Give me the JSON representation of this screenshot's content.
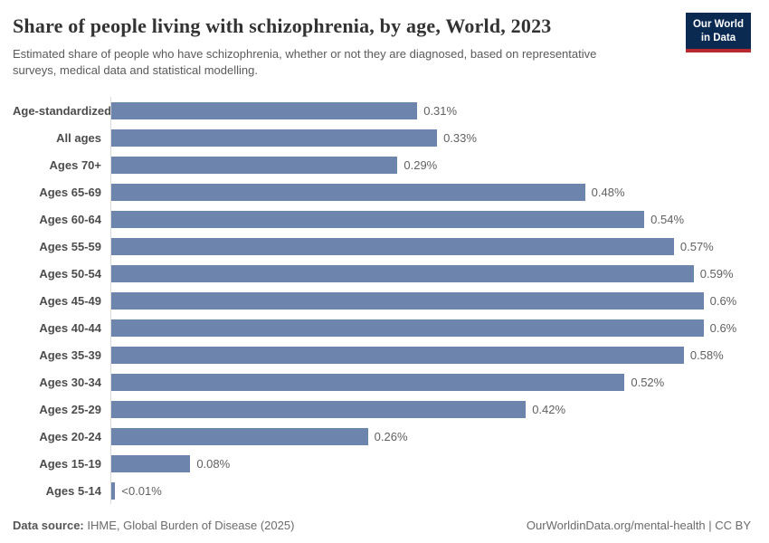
{
  "header": {
    "title": "Share of people living with schizophrenia, by age, World, 2023",
    "subtitle": "Estimated share of people who have schizophrenia, whether or not they are diagnosed, based on representative surveys, medical data and statistical modelling.",
    "logo_line1": "Our World",
    "logo_line2": "in Data"
  },
  "chart_data": {
    "type": "bar",
    "orientation": "horizontal",
    "title": "Share of people living with schizophrenia, by age, World, 2023",
    "categories": [
      "Age-standardized",
      "All ages",
      "Ages 70+",
      "Ages 65-69",
      "Ages 60-64",
      "Ages 55-59",
      "Ages 50-54",
      "Ages 45-49",
      "Ages 40-44",
      "Ages 35-39",
      "Ages 30-34",
      "Ages 25-29",
      "Ages 20-24",
      "Ages 15-19",
      "Ages 5-14"
    ],
    "values": [
      0.31,
      0.33,
      0.29,
      0.48,
      0.54,
      0.57,
      0.59,
      0.6,
      0.6,
      0.58,
      0.52,
      0.42,
      0.26,
      0.08,
      0.004
    ],
    "value_labels": [
      "0.31%",
      "0.33%",
      "0.29%",
      "0.48%",
      "0.54%",
      "0.57%",
      "0.59%",
      "0.6%",
      "0.6%",
      "0.58%",
      "0.52%",
      "0.42%",
      "0.26%",
      "0.08%",
      "<0.01%"
    ],
    "unit": "%",
    "xlabel": "",
    "ylabel": "",
    "xlim": [
      0,
      0.648
    ],
    "grid": false,
    "legend": false,
    "bar_color": "#6d84ad",
    "axis_line_color": "#d9d9d9"
  },
  "footer": {
    "source_label": "Data source:",
    "source_value": " IHME, Global Burden of Disease (2025)",
    "credit": "OurWorldinData.org/mental-health | CC BY"
  },
  "colors": {
    "bar": "#6d84ad",
    "logo_navy": "#0a2a52",
    "logo_red": "#b5292f",
    "title_text": "#333333",
    "subtitle_text": "#5a5a5a",
    "category_label": "#4c4c4c",
    "value_label": "#606060"
  }
}
